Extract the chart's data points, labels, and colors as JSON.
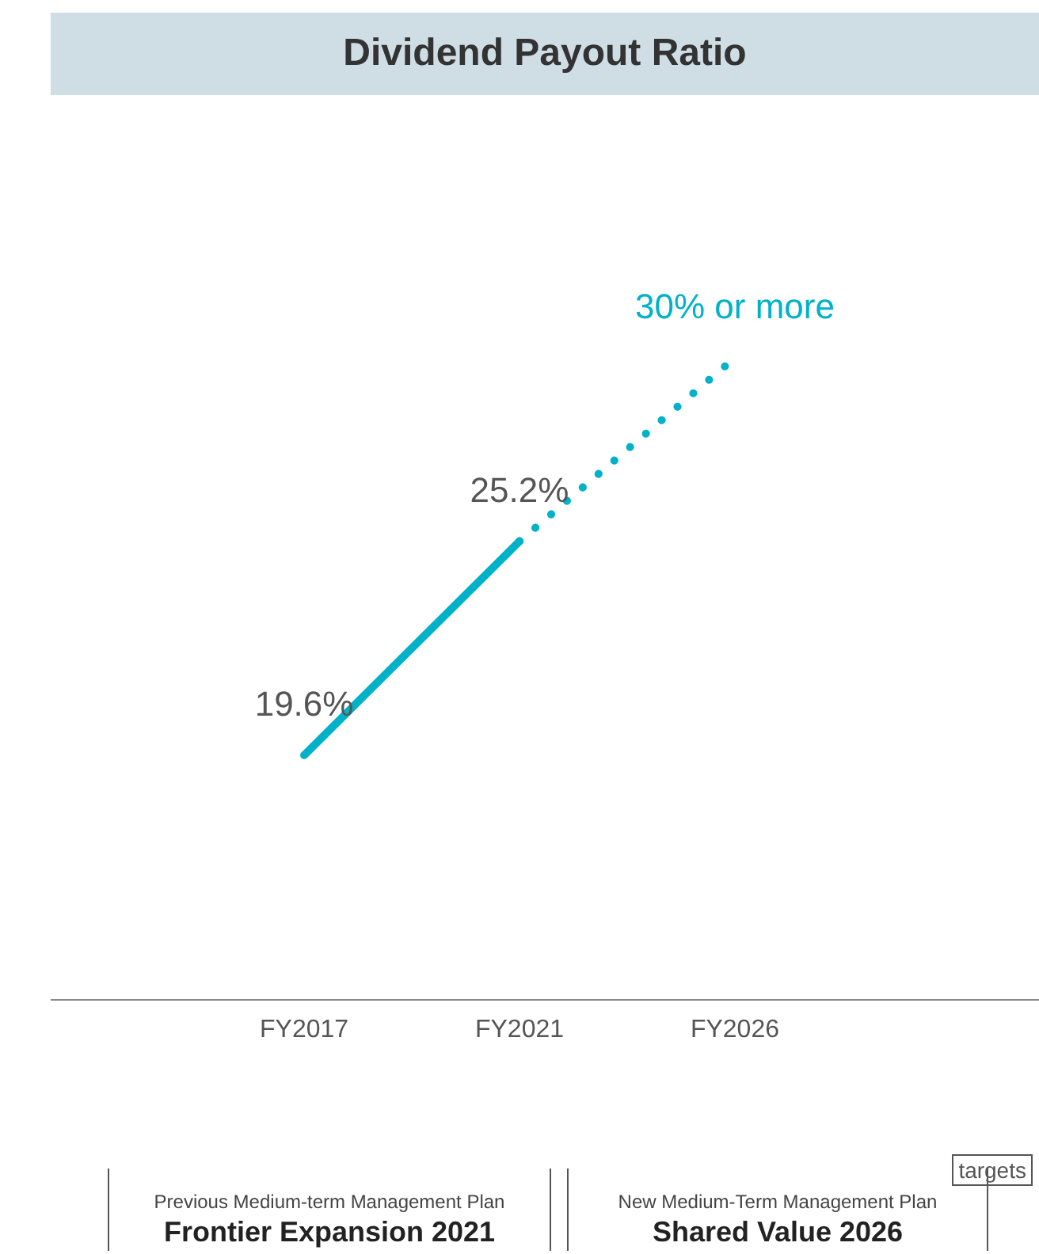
{
  "chart_data": {
    "type": "line",
    "title": "Dividend Payout Ratio",
    "categories": [
      "FY2017",
      "FY2021",
      "FY2026"
    ],
    "series": [
      {
        "color": "#00b2c9",
        "values": [
          19.6,
          25.2,
          null
        ],
        "line_style": "solid",
        "value_labels": [
          "19.6%",
          "25.2%",
          null
        ]
      },
      {
        "color": "#00b2c9",
        "values": [
          null,
          25.2,
          30
        ],
        "line_style": "dotted",
        "value_labels": [
          null,
          null,
          "30% or more"
        ]
      }
    ],
    "marker": "none",
    "annotations": [
      "Previous Medium-term Management Plan",
      "Frontier Expansion 2021",
      "New Medium-Term Management Plan",
      "Shared Value 2026",
      "targets"
    ]
  }
}
